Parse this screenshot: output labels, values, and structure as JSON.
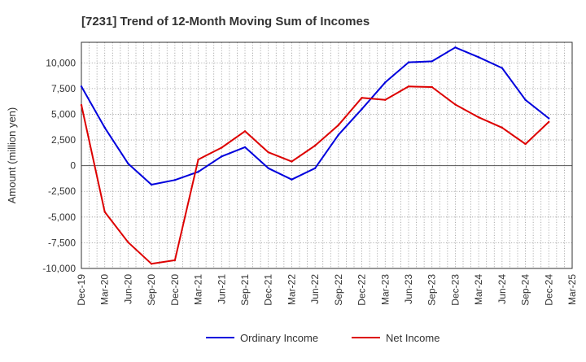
{
  "chart_data": {
    "type": "line",
    "title": "[7231]  Trend of 12-Month Moving Sum of Incomes",
    "xlabel": "",
    "ylabel": "Amount (million yen)",
    "ylim": [
      -10000,
      12000
    ],
    "yticks": [
      -10000,
      -7500,
      -5000,
      -2500,
      0,
      2500,
      5000,
      7500,
      10000
    ],
    "ytick_labels": [
      "-10,000",
      "-7,500",
      "-5,000",
      "-2,500",
      "0",
      "2,500",
      "5,000",
      "7,500",
      "10,000"
    ],
    "categories": [
      "Dec-19",
      "Mar-20",
      "Jun-20",
      "Sep-20",
      "Dec-20",
      "Mar-21",
      "Jun-21",
      "Sep-21",
      "Dec-21",
      "Mar-22",
      "Jun-22",
      "Sep-22",
      "Dec-22",
      "Mar-23",
      "Jun-23",
      "Sep-23",
      "Dec-23",
      "Mar-24",
      "Jun-24",
      "Sep-24",
      "Dec-24",
      "Mar-25"
    ],
    "grid": true,
    "legend_position": "bottom",
    "series": [
      {
        "name": "Ordinary Income",
        "color": "#0000dd",
        "values": [
          7700,
          3700,
          200,
          -1850,
          -1400,
          -600,
          900,
          1800,
          -250,
          -1350,
          -250,
          3000,
          5500,
          8100,
          10050,
          10150,
          11500,
          10550,
          9500,
          6400,
          4600,
          null
        ]
      },
      {
        "name": "Net Income",
        "color": "#dd0000",
        "values": [
          5900,
          -4500,
          -7450,
          -9550,
          -9200,
          600,
          1750,
          3350,
          1300,
          400,
          1950,
          3950,
          6600,
          6400,
          7700,
          7650,
          5950,
          4700,
          3700,
          2100,
          4250,
          null
        ]
      }
    ]
  }
}
